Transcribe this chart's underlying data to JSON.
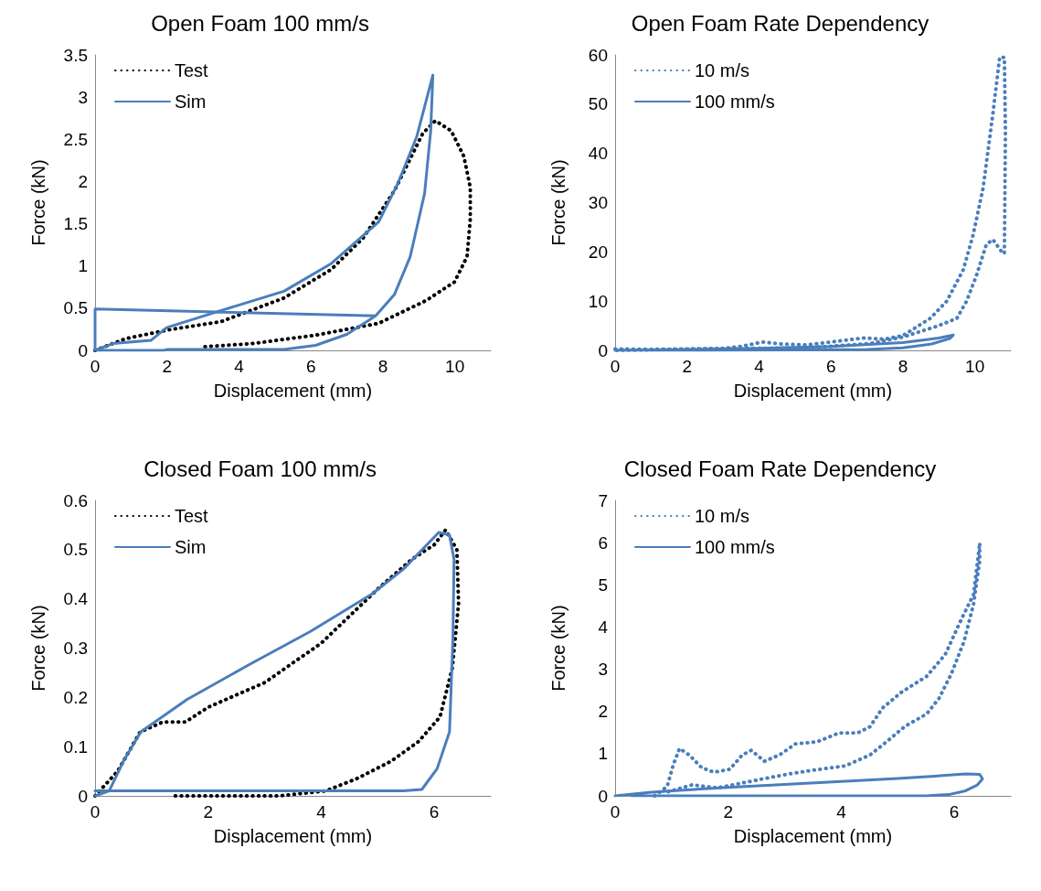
{
  "chart_data": [
    {
      "type": "line",
      "title": "Open Foam 100 mm/s",
      "xlabel": "Displacement (mm)",
      "ylabel": "Force (kN)",
      "xlim": [
        0,
        11
      ],
      "xticks": [
        0,
        2,
        4,
        6,
        8,
        10
      ],
      "ylim": [
        0,
        3.5
      ],
      "yticks": [
        0,
        0.5,
        1,
        1.5,
        2,
        2.5,
        3,
        3.5
      ],
      "grid": false,
      "legend": "top left",
      "marker": "none",
      "series": [
        {
          "name": "Test",
          "color": "#000000",
          "line_style": "dotted",
          "x": [
            0,
            0.86,
            2,
            3.5,
            5.25,
            6.57,
            7.45,
            8.32,
            8.76,
            9.11,
            9.46,
            9.9,
            10.25,
            10.43,
            10.43,
            10.34,
            9.99,
            9.2,
            7.88,
            6.13,
            4.37,
            2.92
          ],
          "values": [
            0,
            0.14,
            0.24,
            0.34,
            0.62,
            0.96,
            1.33,
            1.89,
            2.27,
            2.57,
            2.72,
            2.6,
            2.3,
            1.93,
            1.56,
            1.11,
            0.81,
            0.59,
            0.32,
            0.18,
            0.08,
            0.04
          ]
        },
        {
          "name": "Sim",
          "color": "#4a7ebb",
          "line_style": "solid",
          "x": [
            0,
            0.5,
            1.56,
            1.99,
            3.49,
            5.25,
            6.57,
            7.88,
            8.41,
            8.94,
            9.39,
            9.33,
            9.16,
            8.76,
            8.32,
            7.8,
            7,
            6.13,
            5.25,
            2,
            1.91,
            0,
            0,
            7.8
          ],
          "values": [
            0,
            0.08,
            0.12,
            0.27,
            0.47,
            0.7,
            1.03,
            1.52,
            1.97,
            2.53,
            3.26,
            2.6,
            1.86,
            1.11,
            0.66,
            0.41,
            0.19,
            0.06,
            0.01,
            0.01,
            0,
            0,
            0.49,
            0.41
          ]
        }
      ]
    },
    {
      "type": "line",
      "title": "Open Foam Rate Dependency",
      "xlabel": "Displacement (mm)",
      "ylabel": "Force (kN)",
      "xlim": [
        0,
        11
      ],
      "xticks": [
        0,
        2,
        4,
        6,
        8,
        10
      ],
      "ylim": [
        0,
        60
      ],
      "yticks": [
        0,
        10,
        20,
        30,
        40,
        50,
        60
      ],
      "grid": false,
      "legend": "top left",
      "marker": "none",
      "series": [
        {
          "name": "10 m/s",
          "color": "#4a7ebb",
          "line_style": "dotted",
          "x": [
            0,
            1,
            2,
            3,
            3.5,
            4.1,
            4.6,
            5.3,
            6,
            6.9,
            7.5,
            8,
            8.76,
            9.22,
            9.68,
            9.95,
            10.23,
            10.5,
            10.69,
            10.82,
            10.85,
            10.82,
            10.73,
            10.5,
            10.32,
            10.04,
            9.77,
            9.5,
            8.95,
            8,
            7.1,
            5.3,
            2.5,
            0
          ],
          "values": [
            0.3,
            0.2,
            0.3,
            0.4,
            0.8,
            1.7,
            1.3,
            1.1,
            1.7,
            2.5,
            2.3,
            3,
            6.5,
            10,
            16.4,
            23.4,
            33,
            48,
            59.5,
            59.5,
            44.5,
            19.6,
            20.2,
            22.5,
            21.5,
            15.1,
            10,
            6.5,
            4.9,
            2.7,
            1.4,
            0.5,
            0.3,
            0
          ]
        },
        {
          "name": "100 mm/s",
          "color": "#4a7ebb",
          "line_style": "solid",
          "x": [
            0,
            2,
            4,
            6,
            8,
            9,
            9.4,
            9.3,
            8.8,
            8,
            7,
            5,
            2,
            0.3
          ],
          "values": [
            0,
            0.1,
            0.4,
            0.8,
            1.6,
            2.5,
            3.1,
            2.4,
            1.3,
            0.5,
            0.2,
            0.1,
            0,
            0
          ]
        }
      ]
    },
    {
      "type": "line",
      "title": "Closed Foam 100 mm/s",
      "xlabel": "Displacement (mm)",
      "ylabel": "Force (kN)",
      "xlim": [
        0,
        7
      ],
      "xticks": [
        0,
        2,
        4,
        6
      ],
      "ylim": [
        0,
        0.6
      ],
      "yticks": [
        0,
        0.1,
        0.2,
        0.3,
        0.4,
        0.5,
        0.6
      ],
      "grid": false,
      "legend": "top left",
      "marker": "none",
      "series": [
        {
          "name": "Test",
          "color": "#000000",
          "line_style": "dotted",
          "x": [
            0,
            0.4,
            0.8,
            1.2,
            1.6,
            2,
            3,
            4,
            5,
            5.6,
            6,
            6.2,
            6.4,
            6.43,
            6.32,
            6.1,
            5.72,
            5.23,
            4.63,
            4.08,
            3.26,
            2.17,
            1.41
          ],
          "values": [
            0,
            0.05,
            0.13,
            0.15,
            0.15,
            0.18,
            0.23,
            0.31,
            0.42,
            0.48,
            0.51,
            0.54,
            0.5,
            0.39,
            0.26,
            0.16,
            0.11,
            0.07,
            0.035,
            0.01,
            0,
            0,
            0
          ]
        },
        {
          "name": "Sim",
          "color": "#4a7ebb",
          "line_style": "solid",
          "x": [
            0,
            0.25,
            0.5,
            0.81,
            1.63,
            2.72,
            3.81,
            4.9,
            5.45,
            6.08,
            6.27,
            6.35,
            6.33,
            6.27,
            6.05,
            5.78,
            5.45,
            0
          ],
          "values": [
            0,
            0.01,
            0.07,
            0.13,
            0.196,
            0.266,
            0.334,
            0.41,
            0.46,
            0.535,
            0.53,
            0.48,
            0.32,
            0.13,
            0.055,
            0.013,
            0.01,
            0.01
          ]
        }
      ]
    },
    {
      "type": "line",
      "title": "Closed Foam Rate Dependency",
      "xlabel": "Displacement (mm)",
      "ylabel": "Force (kN)",
      "xlim": [
        0,
        7
      ],
      "xticks": [
        0,
        2,
        4,
        6
      ],
      "ylim": [
        0,
        7
      ],
      "yticks": [
        0,
        1,
        2,
        3,
        4,
        5,
        6,
        7
      ],
      "grid": false,
      "legend": "top left",
      "marker": "none",
      "series": [
        {
          "name": "10 m/s",
          "color": "#4a7ebb",
          "line_style": "dotted",
          "x": [
            0.7,
            0.92,
            1.03,
            1.14,
            1.31,
            1.53,
            1.75,
            2.03,
            2.25,
            2.41,
            2.64,
            2.91,
            3.19,
            3.57,
            3.96,
            4.29,
            4.51,
            4.73,
            5.07,
            5.51,
            5.84,
            6.12,
            6.34,
            6.45,
            6.45,
            6.34,
            6.17,
            5.95,
            5.73,
            5.51,
            5.12,
            4.79,
            4.51,
            4.07,
            3.46,
            3.08,
            2.64,
            2.08,
            1.81,
            1.36,
            0.87
          ],
          "values": [
            0,
            0.22,
            0.74,
            1.12,
            0.97,
            0.67,
            0.56,
            0.63,
            0.97,
            1.08,
            0.82,
            0.97,
            1.23,
            1.28,
            1.49,
            1.49,
            1.64,
            2.08,
            2.46,
            2.83,
            3.35,
            4.17,
            4.77,
            5.99,
            5.58,
            4.54,
            3.65,
            2.9,
            2.31,
            1.94,
            1.64,
            1.27,
            0.97,
            0.71,
            0.6,
            0.52,
            0.41,
            0.26,
            0.19,
            0.26,
            0.07
          ]
        },
        {
          "name": "100 mm/s",
          "color": "#4a7ebb",
          "line_style": "solid",
          "x": [
            0,
            0.6,
            1,
            2,
            3,
            4,
            5,
            5.8,
            6.2,
            6.45,
            6.5,
            6.4,
            6.2,
            5.9,
            5.5,
            3,
            0.3
          ],
          "values": [
            0,
            0.08,
            0.12,
            0.2,
            0.27,
            0.34,
            0.41,
            0.48,
            0.52,
            0.51,
            0.4,
            0.25,
            0.12,
            0.03,
            0,
            0,
            0
          ]
        }
      ]
    }
  ]
}
